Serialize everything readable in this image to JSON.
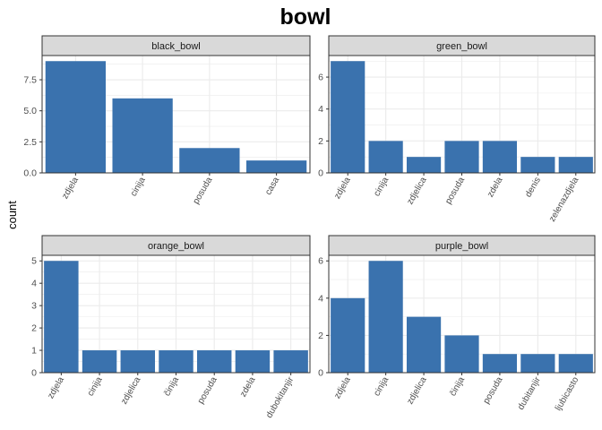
{
  "title": "bowl",
  "ylabel": "count",
  "colors": {
    "bar": "#3A72AE",
    "strip": "#D9D9D9",
    "grid": "#EBEBEB",
    "border": "#333333"
  },
  "chart_data": [
    {
      "type": "bar",
      "panel": "black_bowl",
      "categories": [
        "zdjela",
        "cinija",
        "posuda",
        "casa"
      ],
      "values": [
        9,
        6,
        2,
        1
      ],
      "ylim": [
        0,
        9.45
      ],
      "yticks": [
        "0.0",
        "2.5",
        "5.0",
        "7.5"
      ],
      "ytick_values": [
        0,
        2.5,
        5,
        7.5
      ]
    },
    {
      "type": "bar",
      "panel": "green_bowl",
      "categories": [
        "zdjela",
        "cinija",
        "zdjelica",
        "posuda",
        "zdela",
        "denis",
        "zelenazdjela"
      ],
      "values": [
        7,
        2,
        1,
        2,
        2,
        1,
        1
      ],
      "ylim": [
        0,
        7.35
      ],
      "yticks": [
        "0",
        "2",
        "4",
        "6"
      ],
      "ytick_values": [
        0,
        2,
        4,
        6
      ]
    },
    {
      "type": "bar",
      "panel": "orange_bowl",
      "categories": [
        "zdjela",
        "cinija",
        "zdjelica",
        "činija",
        "posuda",
        "zdela",
        "dubokitanjir"
      ],
      "values": [
        5,
        1,
        1,
        1,
        1,
        1,
        1
      ],
      "ylim": [
        0,
        5.25
      ],
      "yticks": [
        "0",
        "1",
        "2",
        "3",
        "4",
        "5"
      ],
      "ytick_values": [
        0,
        1,
        2,
        3,
        4,
        5
      ]
    },
    {
      "type": "bar",
      "panel": "purple_bowl",
      "categories": [
        "zdjela",
        "cinija",
        "zdjelica",
        "činija",
        "posuda",
        "dubitanjir",
        "ljubicasto"
      ],
      "values": [
        4,
        6,
        3,
        2,
        1,
        1,
        1
      ],
      "ylim": [
        0,
        6.3
      ],
      "yticks": [
        "0",
        "2",
        "4",
        "6"
      ],
      "ytick_values": [
        0,
        2,
        4,
        6
      ]
    }
  ]
}
